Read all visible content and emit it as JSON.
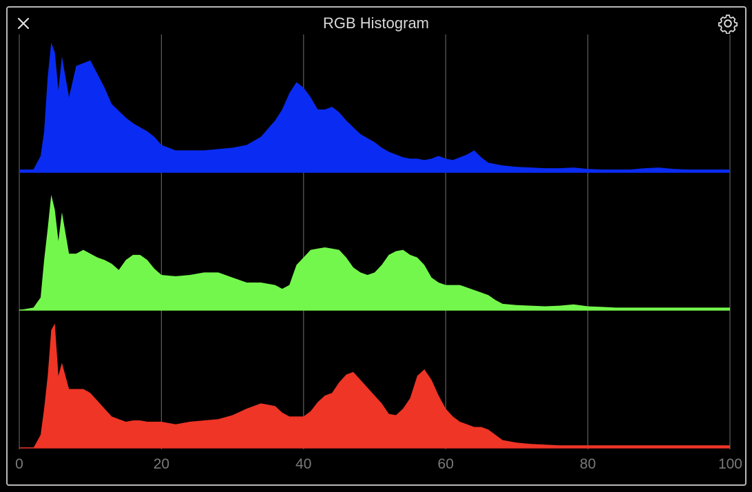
{
  "window": {
    "title": "RGB Histogram",
    "close_icon": "close-icon",
    "settings_icon": "gear-icon"
  },
  "chart_data": {
    "type": "area",
    "title": "RGB Histogram",
    "xlabel": "",
    "ylabel": "",
    "xlim": [
      0,
      100
    ],
    "x_ticks": [
      "0",
      "20",
      "40",
      "60",
      "80",
      "100"
    ],
    "x_tick_values": [
      0,
      20,
      40,
      60,
      80,
      100
    ],
    "grid": true,
    "layout": "three stacked panels (blue top, green middle, red bottom)",
    "x": [
      0,
      2,
      3,
      3.5,
      4,
      4.5,
      5,
      5.5,
      6,
      7,
      8,
      9,
      10,
      11,
      12,
      13,
      14,
      15,
      16,
      17,
      18,
      19,
      20,
      22,
      24,
      26,
      28,
      30,
      32,
      34,
      36,
      37,
      38,
      39,
      40,
      41,
      42,
      43,
      44,
      45,
      46,
      47,
      48,
      49,
      50,
      51,
      52,
      53,
      54,
      55,
      56,
      57,
      58,
      59,
      60,
      61,
      62,
      63,
      64,
      65,
      66,
      67,
      68,
      70,
      72,
      74,
      76,
      78,
      80,
      82,
      84,
      86,
      88,
      90,
      92,
      94,
      96,
      98,
      100
    ],
    "series": [
      {
        "color": "#0a2cf2",
        "values": [
          0.02,
          0.02,
          0.12,
          0.3,
          0.7,
          0.95,
          0.88,
          0.6,
          0.85,
          0.55,
          0.78,
          0.8,
          0.82,
          0.72,
          0.62,
          0.5,
          0.45,
          0.4,
          0.36,
          0.33,
          0.3,
          0.26,
          0.2,
          0.16,
          0.16,
          0.16,
          0.17,
          0.18,
          0.2,
          0.26,
          0.38,
          0.46,
          0.58,
          0.66,
          0.62,
          0.55,
          0.46,
          0.46,
          0.48,
          0.44,
          0.38,
          0.33,
          0.28,
          0.25,
          0.22,
          0.18,
          0.15,
          0.13,
          0.11,
          0.1,
          0.1,
          0.09,
          0.1,
          0.12,
          0.1,
          0.09,
          0.11,
          0.13,
          0.16,
          0.11,
          0.07,
          0.06,
          0.05,
          0.04,
          0.035,
          0.03,
          0.03,
          0.035,
          0.025,
          0.02,
          0.02,
          0.02,
          0.03,
          0.035,
          0.025,
          0.02,
          0.02,
          0.02,
          0.02
        ]
      },
      {
        "color": "#74f74c",
        "values": [
          0,
          0.02,
          0.1,
          0.4,
          0.65,
          0.92,
          0.8,
          0.55,
          0.78,
          0.45,
          0.45,
          0.48,
          0.45,
          0.42,
          0.4,
          0.37,
          0.32,
          0.4,
          0.44,
          0.44,
          0.4,
          0.33,
          0.28,
          0.27,
          0.28,
          0.3,
          0.3,
          0.26,
          0.22,
          0.22,
          0.2,
          0.17,
          0.2,
          0.36,
          0.42,
          0.48,
          0.49,
          0.5,
          0.49,
          0.48,
          0.42,
          0.34,
          0.3,
          0.28,
          0.3,
          0.36,
          0.44,
          0.47,
          0.48,
          0.44,
          0.42,
          0.36,
          0.26,
          0.22,
          0.2,
          0.2,
          0.2,
          0.18,
          0.16,
          0.14,
          0.12,
          0.08,
          0.05,
          0.04,
          0.035,
          0.03,
          0.035,
          0.045,
          0.03,
          0.025,
          0.02,
          0.02,
          0.02,
          0.02,
          0.02,
          0.02,
          0.02,
          0.02,
          0.02
        ]
      },
      {
        "color": "#ee3526",
        "values": [
          0,
          0,
          0.1,
          0.3,
          0.55,
          0.9,
          0.95,
          0.55,
          0.65,
          0.45,
          0.45,
          0.45,
          0.42,
          0.36,
          0.3,
          0.24,
          0.22,
          0.2,
          0.21,
          0.21,
          0.2,
          0.2,
          0.2,
          0.18,
          0.2,
          0.21,
          0.22,
          0.25,
          0.3,
          0.34,
          0.32,
          0.27,
          0.24,
          0.24,
          0.24,
          0.28,
          0.35,
          0.4,
          0.42,
          0.5,
          0.56,
          0.58,
          0.52,
          0.46,
          0.4,
          0.34,
          0.26,
          0.25,
          0.3,
          0.38,
          0.55,
          0.6,
          0.52,
          0.4,
          0.3,
          0.24,
          0.2,
          0.18,
          0.16,
          0.16,
          0.14,
          0.1,
          0.06,
          0.04,
          0.03,
          0.025,
          0.02,
          0.02,
          0.02,
          0.02,
          0.02,
          0.02,
          0.02,
          0.02,
          0.02,
          0.02,
          0.02,
          0.02,
          0.02
        ]
      }
    ]
  }
}
